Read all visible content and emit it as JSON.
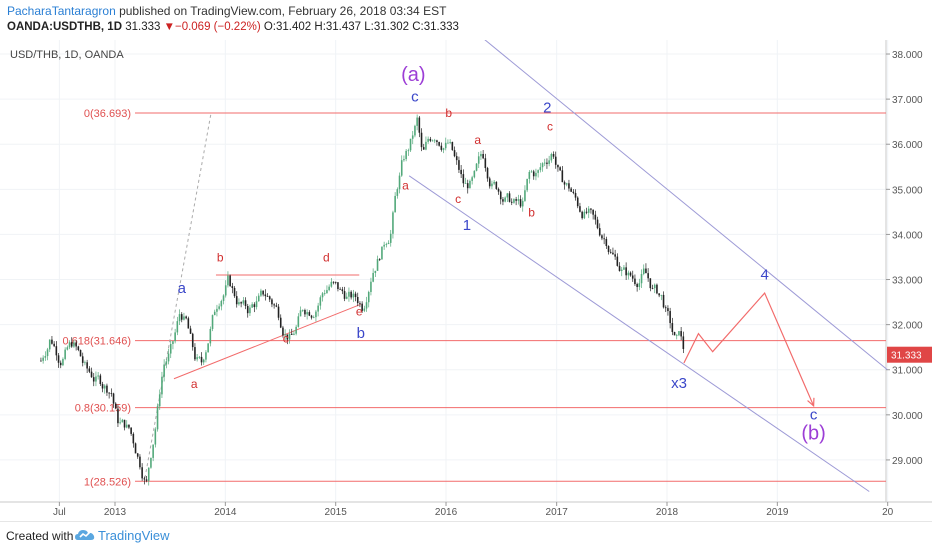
{
  "header": {
    "author": "PacharaTantaragron",
    "published_text": " published on TradingView.com, February 26, 2018 03:34 EST",
    "symbol": "OANDA:USDTHB, 1D",
    "last": "31.333",
    "change_arrow": "▼",
    "change": "−0.069 (−0.22%)",
    "o": "O:31.402",
    "h": "H:31.437",
    "l": "L:31.302",
    "c": "C:31.333"
  },
  "footer": {
    "created_with": "Created with",
    "brand": "TradingView"
  },
  "colors": {
    "fib": "#f26b6b",
    "fib_label": "#e05050",
    "channel": "#9d9ad6",
    "wave_blue": "#3b47c9",
    "wave_purple": "#9c3ed6",
    "wave_red": "#d12f2f",
    "price_badge": "#e04646",
    "candle_up": "#52a87a",
    "candle_down": "#222222"
  },
  "chart_data": {
    "type": "candlestick",
    "title": "USD/THB, 1D, OANDA",
    "x_ticks": [
      "Jul",
      "2013",
      "2014",
      "2015",
      "2016",
      "2017",
      "2018",
      "2019",
      "20"
    ],
    "y_ticks": [
      "29.000",
      "30.000",
      "31.000",
      "32.000",
      "33.000",
      "34.000",
      "35.000",
      "36.000",
      "37.000",
      "38.000"
    ],
    "ylim": [
      28.3,
      38.2
    ],
    "last_price_label": "31.333",
    "fib_levels": [
      {
        "label": "0(36.693)",
        "value": 36.693
      },
      {
        "label": "0.618(31.646)",
        "value": 31.646
      },
      {
        "label": "0.8(30.159)",
        "value": 30.159
      },
      {
        "label": "1(28.526)",
        "value": 28.526
      }
    ],
    "price_path": [
      {
        "date": "2012-05-01",
        "price": 31.2
      },
      {
        "date": "2012-06-01",
        "price": 31.8
      },
      {
        "date": "2012-07-01",
        "price": 31.4
      },
      {
        "date": "2012-08-15",
        "price": 31.6
      },
      {
        "date": "2012-10-01",
        "price": 30.9
      },
      {
        "date": "2012-11-15",
        "price": 30.7
      },
      {
        "date": "2012-12-20",
        "price": 30.6
      },
      {
        "date": "2013-01-10",
        "price": 29.9
      },
      {
        "date": "2013-02-15",
        "price": 29.7
      },
      {
        "date": "2013-03-15",
        "price": 29.2
      },
      {
        "date": "2013-04-15",
        "price": 28.6
      },
      {
        "date": "2013-05-15",
        "price": 29.9
      },
      {
        "date": "2013-06-10",
        "price": 31.2
      },
      {
        "date": "2013-07-10",
        "price": 31.5
      },
      {
        "date": "2013-08-05",
        "price": 32.2
      },
      {
        "date": "2013-08-25",
        "price": 32.0
      },
      {
        "date": "2013-09-20",
        "price": 31.2
      },
      {
        "date": "2013-10-15",
        "price": 31.0
      },
      {
        "date": "2013-11-15",
        "price": 32.0
      },
      {
        "date": "2013-12-15",
        "price": 32.7
      },
      {
        "date": "2014-01-10",
        "price": 33.0
      },
      {
        "date": "2014-02-05",
        "price": 32.6
      },
      {
        "date": "2014-03-15",
        "price": 32.3
      },
      {
        "date": "2014-04-15",
        "price": 32.5
      },
      {
        "date": "2014-05-15",
        "price": 32.6
      },
      {
        "date": "2014-06-15",
        "price": 32.4
      },
      {
        "date": "2014-07-15",
        "price": 32.0
      },
      {
        "date": "2014-08-10",
        "price": 31.8
      },
      {
        "date": "2014-09-15",
        "price": 32.3
      },
      {
        "date": "2014-10-15",
        "price": 32.4
      },
      {
        "date": "2014-11-15",
        "price": 32.8
      },
      {
        "date": "2014-12-15",
        "price": 33.0
      },
      {
        "date": "2015-01-15",
        "price": 32.7
      },
      {
        "date": "2015-02-15",
        "price": 32.6
      },
      {
        "date": "2015-03-15",
        "price": 32.5
      },
      {
        "date": "2015-04-01",
        "price": 32.4
      },
      {
        "date": "2015-05-01",
        "price": 33.4
      },
      {
        "date": "2015-06-01",
        "price": 33.8
      },
      {
        "date": "2015-07-01",
        "price": 34.2
      },
      {
        "date": "2015-07-20",
        "price": 35.0
      },
      {
        "date": "2015-08-10",
        "price": 35.6
      },
      {
        "date": "2015-09-01",
        "price": 35.9
      },
      {
        "date": "2015-09-28",
        "price": 36.45
      },
      {
        "date": "2015-10-15",
        "price": 35.6
      },
      {
        "date": "2015-11-01",
        "price": 35.9
      },
      {
        "date": "2015-11-25",
        "price": 36.2
      },
      {
        "date": "2016-01-10",
        "price": 36.1
      },
      {
        "date": "2016-02-01",
        "price": 35.6
      },
      {
        "date": "2016-03-01",
        "price": 35.0
      },
      {
        "date": "2016-04-01",
        "price": 35.1
      },
      {
        "date": "2016-05-01",
        "price": 35.6
      },
      {
        "date": "2016-06-01",
        "price": 35.2
      },
      {
        "date": "2016-07-01",
        "price": 35.0
      },
      {
        "date": "2016-08-10",
        "price": 34.7
      },
      {
        "date": "2016-09-10",
        "price": 34.6
      },
      {
        "date": "2016-10-01",
        "price": 35.2
      },
      {
        "date": "2016-11-01",
        "price": 35.3
      },
      {
        "date": "2016-12-20",
        "price": 35.9
      },
      {
        "date": "2017-01-15",
        "price": 35.2
      },
      {
        "date": "2017-02-15",
        "price": 35.0
      },
      {
        "date": "2017-03-15",
        "price": 34.6
      },
      {
        "date": "2017-04-15",
        "price": 34.5
      },
      {
        "date": "2017-05-15",
        "price": 34.0
      },
      {
        "date": "2017-06-15",
        "price": 33.9
      },
      {
        "date": "2017-07-15",
        "price": 33.5
      },
      {
        "date": "2017-08-15",
        "price": 33.2
      },
      {
        "date": "2017-09-15",
        "price": 33.0
      },
      {
        "date": "2017-10-15",
        "price": 33.2
      },
      {
        "date": "2017-11-15",
        "price": 32.8
      },
      {
        "date": "2017-12-15",
        "price": 32.6
      },
      {
        "date": "2018-01-10",
        "price": 32.0
      },
      {
        "date": "2018-02-01",
        "price": 31.5
      },
      {
        "date": "2018-02-10",
        "price": 31.8
      },
      {
        "date": "2018-02-26",
        "price": 31.333
      }
    ],
    "projection_path": [
      {
        "date": "2018-02-26",
        "price": 31.15
      },
      {
        "date": "2018-04-15",
        "price": 31.8
      },
      {
        "date": "2018-06-01",
        "price": 31.4
      },
      {
        "date": "2018-11-20",
        "price": 32.7
      },
      {
        "date": "2019-05-01",
        "price": 30.2
      }
    ],
    "trendlines": [
      {
        "name": "upper-channel",
        "from": {
          "date": "2016-01-05",
          "price": 39.0
        },
        "to": {
          "date": "2019-12-31",
          "price": 31.0
        }
      },
      {
        "name": "lower-channel",
        "from": {
          "date": "2015-09-01",
          "price": 35.3
        },
        "to": {
          "date": "2019-11-01",
          "price": 28.3
        }
      },
      {
        "name": "triangle-top",
        "from": {
          "date": "2013-12-01",
          "price": 33.1
        },
        "to": {
          "date": "2015-03-20",
          "price": 33.1
        }
      },
      {
        "name": "triangle-bottom",
        "from": {
          "date": "2013-07-15",
          "price": 30.8
        },
        "to": {
          "date": "2015-03-25",
          "price": 32.45
        }
      },
      {
        "name": "fib-extension",
        "from": {
          "date": "2013-04-10",
          "price": 28.6
        },
        "to": {
          "date": "2013-11-15",
          "price": 36.7
        }
      }
    ],
    "wave_labels": [
      {
        "text": "(a)",
        "date": "2015-09-15",
        "price": 37.4,
        "style": "purple-large"
      },
      {
        "text": "c",
        "date": "2015-09-20",
        "price": 36.95,
        "style": "blue"
      },
      {
        "text": "b",
        "date": "2016-01-10",
        "price": 36.6,
        "style": "red"
      },
      {
        "text": "a",
        "date": "2015-08-20",
        "price": 35.0,
        "style": "red"
      },
      {
        "text": "a",
        "date": "2016-04-15",
        "price": 36.0,
        "style": "red"
      },
      {
        "text": "c",
        "date": "2016-02-10",
        "price": 34.7,
        "style": "red"
      },
      {
        "text": "b",
        "date": "2016-10-10",
        "price": 34.4,
        "style": "red"
      },
      {
        "text": "1",
        "date": "2016-03-10",
        "price": 34.1,
        "style": "blue"
      },
      {
        "text": "2",
        "date": "2016-12-01",
        "price": 36.7,
        "style": "blue"
      },
      {
        "text": "c",
        "date": "2016-12-10",
        "price": 36.3,
        "style": "red"
      },
      {
        "text": "a",
        "date": "2013-08-10",
        "price": 32.7,
        "style": "blue"
      },
      {
        "text": "a",
        "date": "2013-09-20",
        "price": 30.6,
        "style": "red"
      },
      {
        "text": "b",
        "date": "2013-12-15",
        "price": 33.4,
        "style": "red"
      },
      {
        "text": "c",
        "date": "2014-07-20",
        "price": 31.6,
        "style": "red"
      },
      {
        "text": "d",
        "date": "2014-12-01",
        "price": 33.4,
        "style": "red"
      },
      {
        "text": "e",
        "date": "2015-03-20",
        "price": 32.2,
        "style": "red"
      },
      {
        "text": "b",
        "date": "2015-03-25",
        "price": 31.7,
        "style": "blue"
      },
      {
        "text": "x3",
        "date": "2018-02-10",
        "price": 30.6,
        "style": "blue"
      },
      {
        "text": "4",
        "date": "2018-11-20",
        "price": 33.0,
        "style": "blue"
      },
      {
        "text": "c",
        "date": "2019-05-01",
        "price": 29.9,
        "style": "blue"
      },
      {
        "text": "(b)",
        "date": "2019-05-01",
        "price": 29.45,
        "style": "purple-large"
      }
    ]
  }
}
